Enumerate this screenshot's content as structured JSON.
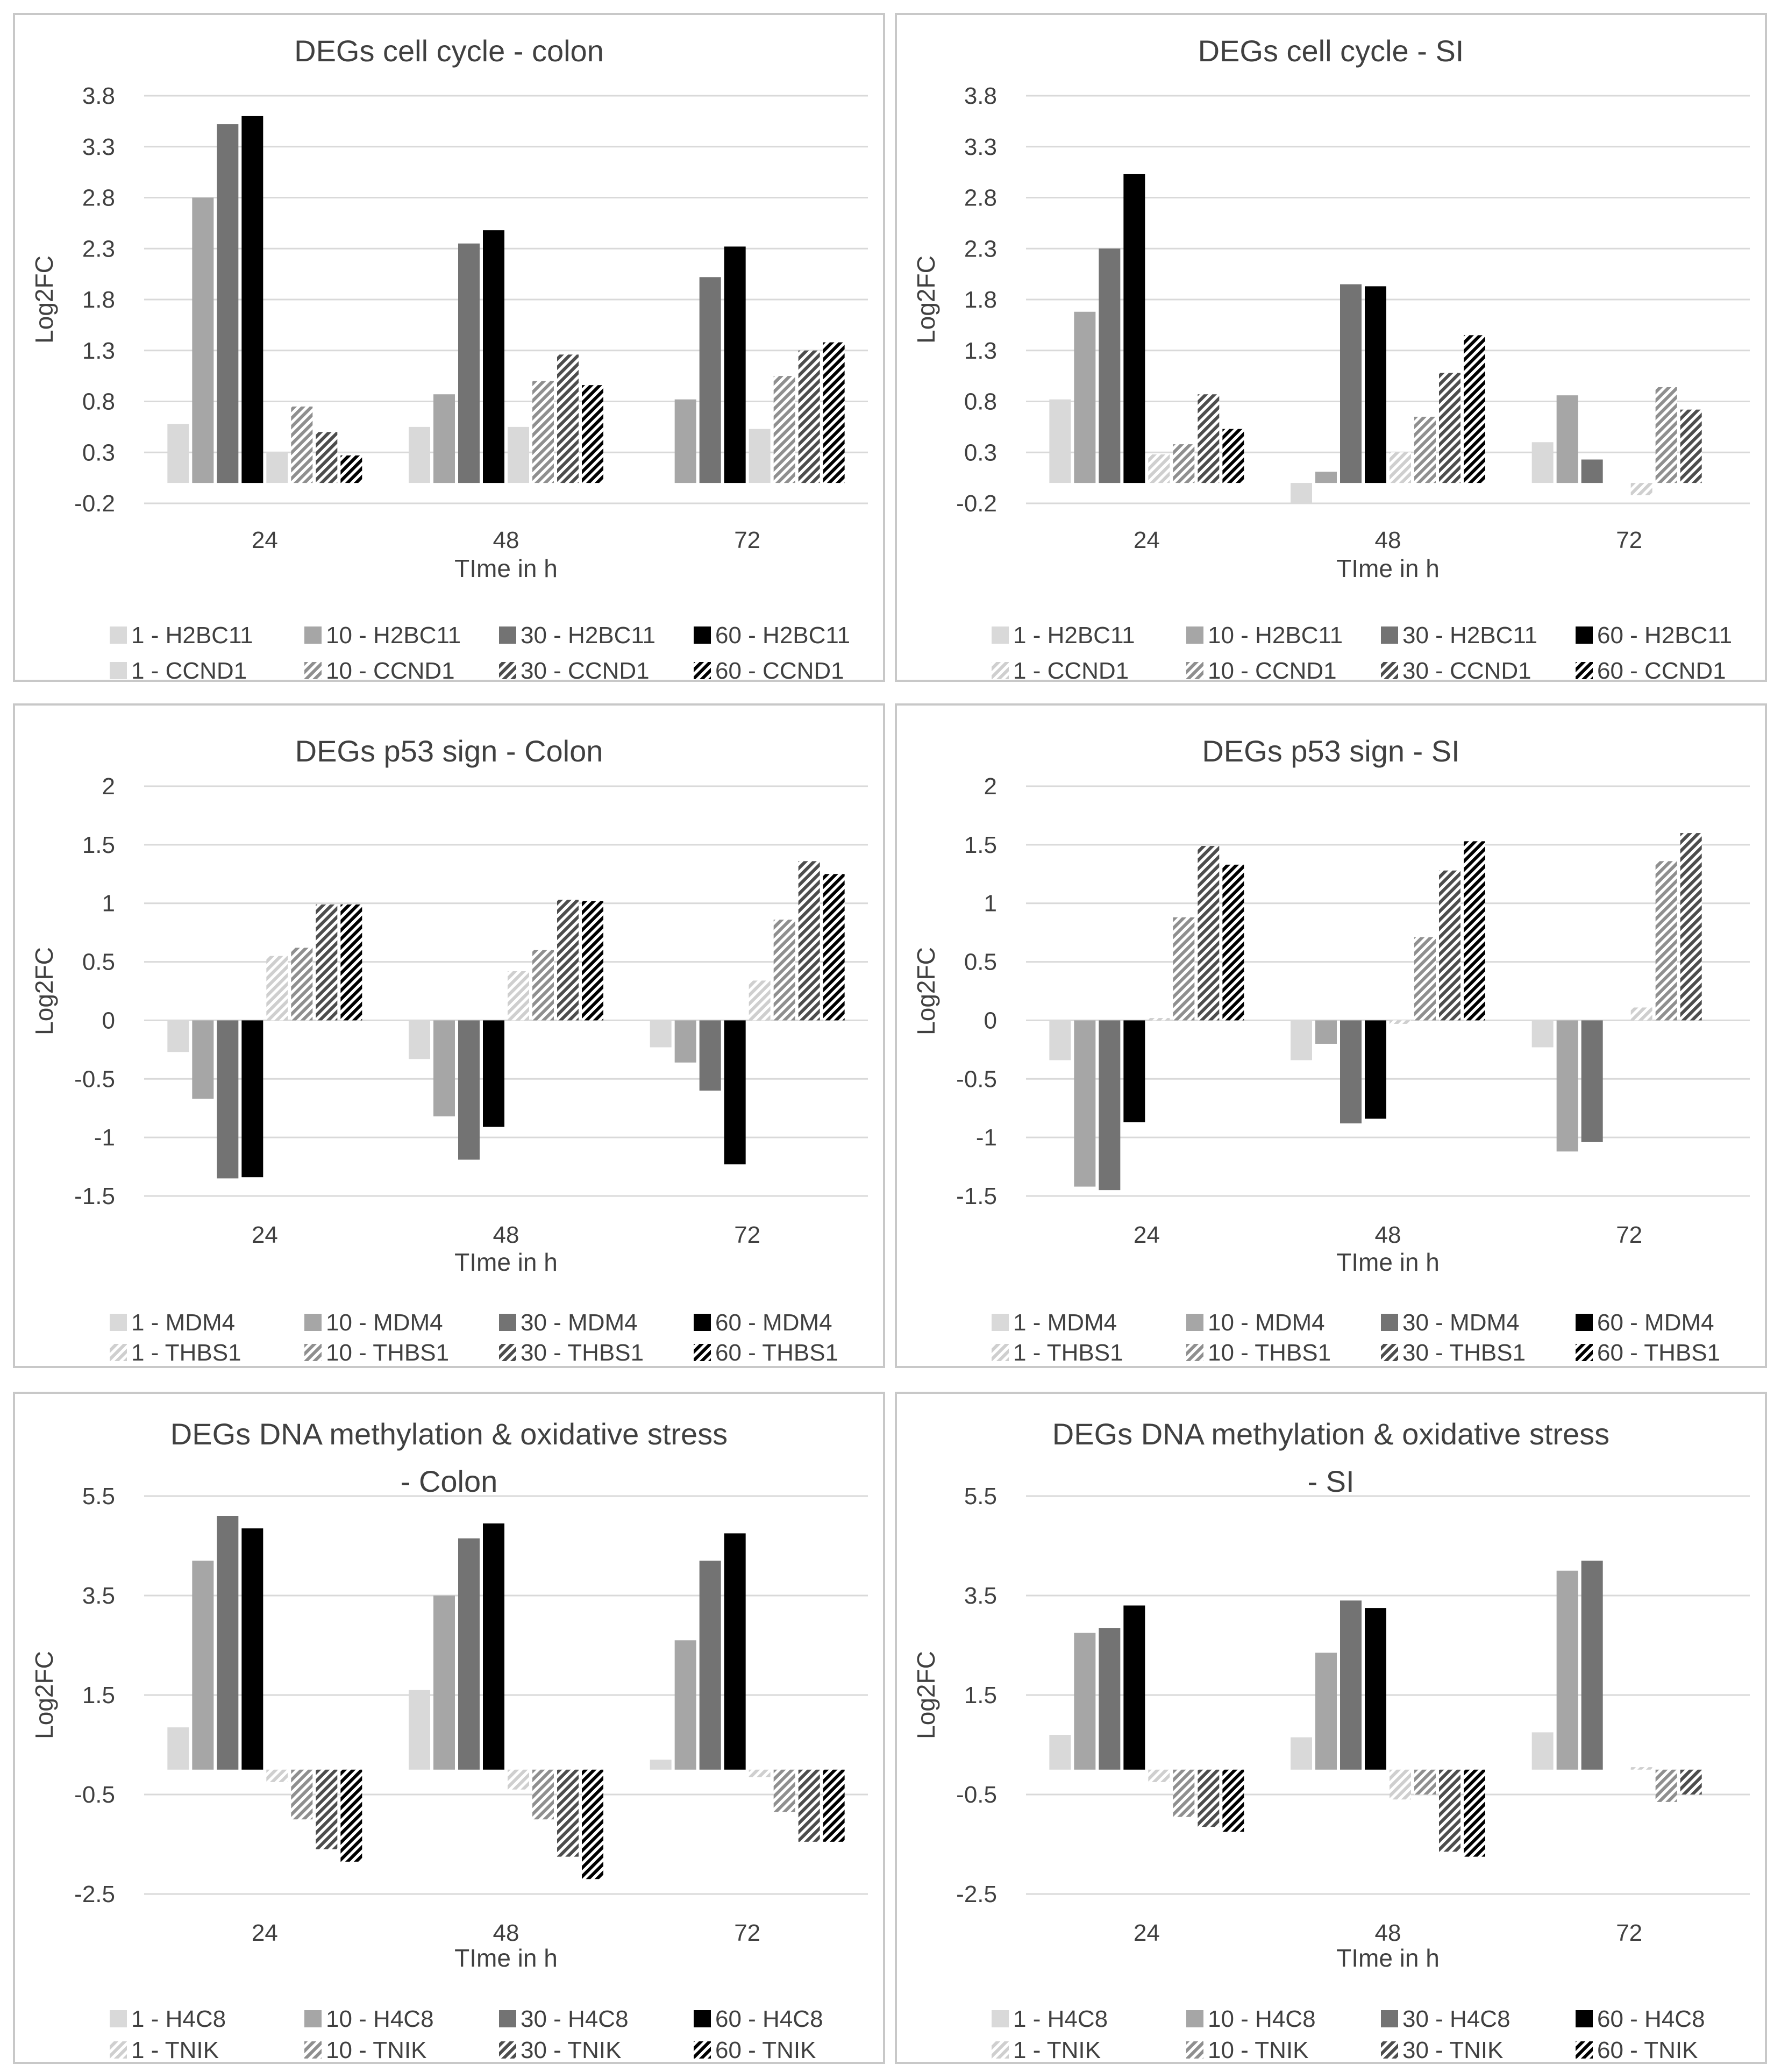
{
  "palette": {
    "1": {
      "fill": "#d9d9d9",
      "hatch": "#cfcfcf"
    },
    "10": {
      "fill": "#a6a6a6",
      "hatch": "#8f8f8f"
    },
    "30": {
      "fill": "#737373",
      "hatch": "#4d4d4d"
    },
    "60": {
      "fill": "#000000",
      "hatch": "#000000"
    }
  },
  "chart_data": [
    {
      "type": "bar",
      "title": [
        "DEGs cell cycle - colon"
      ],
      "xlabel": "TIme in h",
      "ylabel": "Log2FC",
      "categories": [
        "24",
        "48",
        "72"
      ],
      "yticks": [
        -0.2,
        0.3,
        0.8,
        1.3,
        1.8,
        2.3,
        2.8,
        3.3,
        3.8
      ],
      "ytick_labels": [
        "-0.2",
        "0.3",
        "0.8",
        "1.3",
        "1.8",
        "2.3",
        "2.8",
        "3.3",
        "3.8"
      ],
      "ylim": [
        -0.2,
        3.8
      ],
      "series": [
        {
          "name": "1 - H2BC11",
          "dose": "1",
          "hatch": false,
          "values": [
            0.58,
            0.55,
            0.0
          ]
        },
        {
          "name": "10 - H2BC11",
          "dose": "10",
          "hatch": false,
          "values": [
            2.8,
            0.87,
            0.82
          ]
        },
        {
          "name": "30 - H2BC11",
          "dose": "30",
          "hatch": false,
          "values": [
            3.52,
            2.35,
            2.02
          ]
        },
        {
          "name": "60 - H2BC11",
          "dose": "60",
          "hatch": false,
          "values": [
            3.6,
            2.48,
            2.32
          ]
        },
        {
          "name": "1 - CCND1",
          "dose": "1",
          "hatch": false,
          "values": [
            0.3,
            0.55,
            0.53
          ]
        },
        {
          "name": "10 - CCND1",
          "dose": "10",
          "hatch": true,
          "values": [
            0.75,
            1.0,
            1.05
          ]
        },
        {
          "name": "30 - CCND1",
          "dose": "30",
          "hatch": true,
          "values": [
            0.5,
            1.26,
            1.3
          ]
        },
        {
          "name": "60 - CCND1",
          "dose": "60",
          "hatch": true,
          "values": [
            0.27,
            0.96,
            1.38
          ]
        }
      ]
    },
    {
      "type": "bar",
      "title": [
        "DEGs cell cycle - SI"
      ],
      "xlabel": "TIme in h",
      "ylabel": "Log2FC",
      "categories": [
        "24",
        "48",
        "72"
      ],
      "yticks": [
        -0.2,
        0.3,
        0.8,
        1.3,
        1.8,
        2.3,
        2.8,
        3.3,
        3.8
      ],
      "ytick_labels": [
        "-0.2",
        "0.3",
        "0.8",
        "1.3",
        "1.8",
        "2.3",
        "2.8",
        "3.3",
        "3.8"
      ],
      "ylim": [
        -0.2,
        3.8
      ],
      "series": [
        {
          "name": "1 - H2BC11",
          "dose": "1",
          "hatch": false,
          "values": [
            0.82,
            -0.2,
            0.4
          ]
        },
        {
          "name": "10 - H2BC11",
          "dose": "10",
          "hatch": false,
          "values": [
            1.68,
            0.11,
            0.86
          ]
        },
        {
          "name": "30 - H2BC11",
          "dose": "30",
          "hatch": false,
          "values": [
            2.3,
            1.95,
            0.23
          ]
        },
        {
          "name": "60 - H2BC11",
          "dose": "60",
          "hatch": false,
          "values": [
            3.03,
            1.93,
            0.0
          ]
        },
        {
          "name": "1 - CCND1",
          "dose": "1",
          "hatch": true,
          "values": [
            0.28,
            0.3,
            -0.12
          ]
        },
        {
          "name": "10 - CCND1",
          "dose": "10",
          "hatch": true,
          "values": [
            0.38,
            0.65,
            0.94
          ]
        },
        {
          "name": "30 - CCND1",
          "dose": "30",
          "hatch": true,
          "values": [
            0.87,
            1.08,
            0.72
          ]
        },
        {
          "name": "60 - CCND1",
          "dose": "60",
          "hatch": true,
          "values": [
            0.53,
            1.45,
            0.0
          ]
        }
      ]
    },
    {
      "type": "bar",
      "title": [
        "DEGs p53 sign - Colon"
      ],
      "xlabel": "TIme in h",
      "ylabel": "Log2FC",
      "categories": [
        "24",
        "48",
        "72"
      ],
      "yticks": [
        -1.5,
        -1,
        -0.5,
        0,
        0.5,
        1,
        1.5,
        2
      ],
      "ytick_labels": [
        "-1.5",
        "-1",
        "-0.5",
        "0",
        "0.5",
        "1",
        "1.5",
        "2"
      ],
      "ylim": [
        -1.5,
        2
      ],
      "series": [
        {
          "name": "1 - MDM4",
          "dose": "1",
          "hatch": false,
          "values": [
            -0.27,
            -0.33,
            -0.23
          ]
        },
        {
          "name": "10 - MDM4",
          "dose": "10",
          "hatch": false,
          "values": [
            -0.67,
            -0.82,
            -0.36
          ]
        },
        {
          "name": "30 - MDM4",
          "dose": "30",
          "hatch": false,
          "values": [
            -1.35,
            -1.19,
            -0.6
          ]
        },
        {
          "name": "60 - MDM4",
          "dose": "60",
          "hatch": false,
          "values": [
            -1.34,
            -0.91,
            -1.23
          ]
        },
        {
          "name": "1 - THBS1",
          "dose": "1",
          "hatch": true,
          "values": [
            0.55,
            0.42,
            0.34
          ]
        },
        {
          "name": "10 - THBS1",
          "dose": "10",
          "hatch": true,
          "values": [
            0.62,
            0.6,
            0.86
          ]
        },
        {
          "name": "30 - THBS1",
          "dose": "30",
          "hatch": true,
          "values": [
            0.99,
            1.03,
            1.36
          ]
        },
        {
          "name": "60 - THBS1",
          "dose": "60",
          "hatch": true,
          "values": [
            0.99,
            1.02,
            1.25
          ]
        }
      ]
    },
    {
      "type": "bar",
      "title": [
        "DEGs p53 sign - SI"
      ],
      "xlabel": "TIme in h",
      "ylabel": "Log2FC",
      "categories": [
        "24",
        "48",
        "72"
      ],
      "yticks": [
        -1.5,
        -1,
        -0.5,
        0,
        0.5,
        1,
        1.5,
        2
      ],
      "ytick_labels": [
        "-1.5",
        "-1",
        "-0.5",
        "0",
        "0.5",
        "1",
        "1.5",
        "2"
      ],
      "ylim": [
        -1.5,
        2
      ],
      "series": [
        {
          "name": "1 - MDM4",
          "dose": "1",
          "hatch": false,
          "values": [
            -0.34,
            -0.34,
            -0.23
          ]
        },
        {
          "name": "10 - MDM4",
          "dose": "10",
          "hatch": false,
          "values": [
            -1.42,
            -0.2,
            -1.12
          ]
        },
        {
          "name": "30 - MDM4",
          "dose": "30",
          "hatch": false,
          "values": [
            -1.45,
            -0.88,
            -1.04
          ]
        },
        {
          "name": "60 - MDM4",
          "dose": "60",
          "hatch": false,
          "values": [
            -0.87,
            -0.84,
            0.0
          ]
        },
        {
          "name": "1 - THBS1",
          "dose": "1",
          "hatch": true,
          "values": [
            0.02,
            -0.03,
            0.11
          ]
        },
        {
          "name": "10 - THBS1",
          "dose": "10",
          "hatch": true,
          "values": [
            0.88,
            0.71,
            1.36
          ]
        },
        {
          "name": "30 - THBS1",
          "dose": "30",
          "hatch": true,
          "values": [
            1.49,
            1.28,
            1.6
          ]
        },
        {
          "name": "60 - THBS1",
          "dose": "60",
          "hatch": true,
          "values": [
            1.33,
            1.53,
            0.0
          ]
        }
      ]
    },
    {
      "type": "bar",
      "title": [
        "DEGs DNA methylation & oxidative stress",
        "- Colon"
      ],
      "xlabel": "TIme in h",
      "ylabel": "Log2FC",
      "categories": [
        "24",
        "48",
        "72"
      ],
      "yticks": [
        -2.5,
        -0.5,
        1.5,
        3.5,
        5.5
      ],
      "ytick_labels": [
        "-2.5",
        "-0.5",
        "1.5",
        "3.5",
        "5.5"
      ],
      "ylim": [
        -2.5,
        5.5
      ],
      "series": [
        {
          "name": "1 - H4C8",
          "dose": "1",
          "hatch": false,
          "values": [
            0.85,
            1.6,
            0.2
          ]
        },
        {
          "name": "10 - H4C8",
          "dose": "10",
          "hatch": false,
          "values": [
            4.2,
            3.5,
            2.6
          ]
        },
        {
          "name": "30 - H4C8",
          "dose": "30",
          "hatch": false,
          "values": [
            5.1,
            4.65,
            4.2
          ]
        },
        {
          "name": "60 - H4C8",
          "dose": "60",
          "hatch": false,
          "values": [
            4.85,
            4.95,
            4.75
          ]
        },
        {
          "name": "1 - TNIK",
          "dose": "1",
          "hatch": true,
          "values": [
            -0.25,
            -0.4,
            -0.15
          ]
        },
        {
          "name": "10 - TNIK",
          "dose": "10",
          "hatch": true,
          "values": [
            -1.0,
            -1.0,
            -0.85
          ]
        },
        {
          "name": "30 - TNIK",
          "dose": "30",
          "hatch": true,
          "values": [
            -1.6,
            -1.75,
            -1.45
          ]
        },
        {
          "name": "60 - TNIK",
          "dose": "60",
          "hatch": true,
          "values": [
            -1.85,
            -2.2,
            -1.45
          ]
        }
      ]
    },
    {
      "type": "bar",
      "title": [
        "DEGs DNA methylation & oxidative stress",
        "- SI"
      ],
      "xlabel": "TIme in h",
      "ylabel": "Log2FC",
      "categories": [
        "24",
        "48",
        "72"
      ],
      "yticks": [
        -2.5,
        -0.5,
        1.5,
        3.5,
        5.5
      ],
      "ytick_labels": [
        "-2.5",
        "-0.5",
        "1.5",
        "3.5",
        "5.5"
      ],
      "ylim": [
        -2.5,
        5.5
      ],
      "series": [
        {
          "name": "1 - H4C8",
          "dose": "1",
          "hatch": false,
          "values": [
            0.7,
            0.65,
            0.75
          ]
        },
        {
          "name": "10 - H4C8",
          "dose": "10",
          "hatch": false,
          "values": [
            2.75,
            2.35,
            4.0
          ]
        },
        {
          "name": "30 - H4C8",
          "dose": "30",
          "hatch": false,
          "values": [
            2.85,
            3.4,
            4.2
          ]
        },
        {
          "name": "60 - H4C8",
          "dose": "60",
          "hatch": false,
          "values": [
            3.3,
            3.25,
            0.0
          ]
        },
        {
          "name": "1 - TNIK",
          "dose": "1",
          "hatch": true,
          "values": [
            -0.25,
            -0.6,
            0.05
          ]
        },
        {
          "name": "10 - TNIK",
          "dose": "10",
          "hatch": true,
          "values": [
            -0.95,
            -0.5,
            -0.65
          ]
        },
        {
          "name": "30 - TNIK",
          "dose": "30",
          "hatch": true,
          "values": [
            -1.15,
            -1.65,
            -0.5
          ]
        },
        {
          "name": "60 - TNIK",
          "dose": "60",
          "hatch": true,
          "values": [
            -1.25,
            -1.75,
            0.0
          ]
        }
      ]
    }
  ]
}
